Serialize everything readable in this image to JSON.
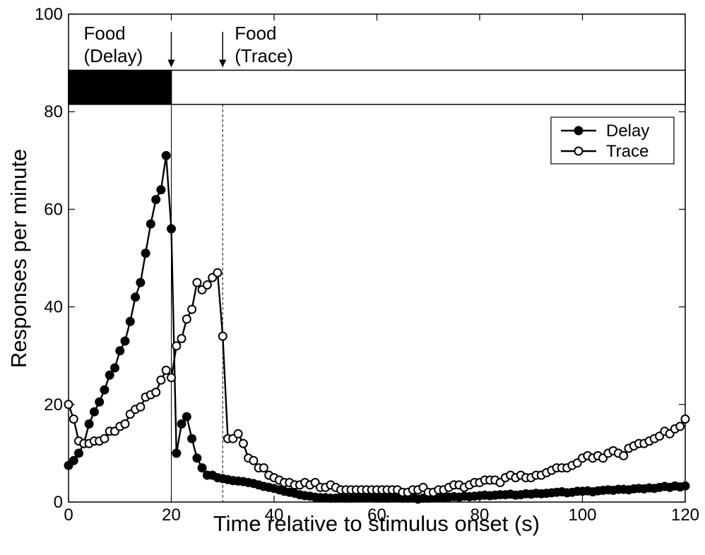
{
  "chart_data": {
    "type": "line",
    "xlabel": "Time relative to stimulus onset (s)",
    "ylabel": "Responses per minute",
    "xlim": [
      0,
      120
    ],
    "ylim": [
      0,
      100
    ],
    "xticks": [
      0,
      20,
      40,
      60,
      80,
      100,
      120
    ],
    "yticks": [
      0,
      20,
      40,
      60,
      80,
      100
    ],
    "grid": false,
    "legend": {
      "position": "top-right",
      "entries": [
        "Delay",
        "Trace"
      ]
    },
    "stimulus_bar": {
      "y_range": [
        81.5,
        88.5
      ],
      "filled_x_range": [
        0,
        20
      ],
      "empty_x_range": [
        20,
        120
      ]
    },
    "event_lines": [
      {
        "x": 20,
        "style": "solid"
      },
      {
        "x": 30,
        "style": "dashed"
      }
    ],
    "annotations": [
      {
        "lines": [
          "Food",
          "(Delay)"
        ],
        "arrow_x": 20
      },
      {
        "lines": [
          "Food",
          "(Trace)"
        ],
        "arrow_x": 30
      }
    ],
    "series": [
      {
        "name": "Delay",
        "marker": "filled",
        "x": [
          0,
          1,
          2,
          3,
          4,
          5,
          6,
          7,
          8,
          9,
          10,
          11,
          12,
          13,
          14,
          15,
          16,
          17,
          18,
          19,
          20,
          21,
          22,
          23,
          24,
          25,
          26,
          27,
          28,
          29,
          30,
          31,
          32,
          33,
          34,
          35,
          36,
          37,
          38,
          39,
          40,
          41,
          42,
          43,
          44,
          45,
          46,
          47,
          48,
          49,
          50,
          51,
          52,
          53,
          54,
          55,
          56,
          57,
          58,
          59,
          60,
          61,
          62,
          63,
          64,
          65,
          66,
          67,
          68,
          69,
          70,
          71,
          72,
          73,
          74,
          75,
          76,
          77,
          78,
          79,
          80,
          81,
          82,
          83,
          84,
          85,
          86,
          87,
          88,
          89,
          90,
          91,
          92,
          93,
          94,
          95,
          96,
          97,
          98,
          99,
          100,
          101,
          102,
          103,
          104,
          105,
          106,
          107,
          108,
          109,
          110,
          111,
          112,
          113,
          114,
          115,
          116,
          117,
          118,
          119,
          120
        ],
        "values": [
          7.5,
          8.5,
          10,
          12,
          16,
          18.5,
          20.5,
          23,
          26,
          27.5,
          31,
          33,
          37,
          42,
          45,
          51,
          57,
          62,
          64,
          71,
          56,
          10,
          16,
          17.5,
          13,
          9,
          7,
          5.5,
          5.5,
          5,
          4.8,
          4.6,
          4.4,
          4.3,
          4.2,
          4,
          3.8,
          3.5,
          3.2,
          3,
          2.8,
          2.5,
          2.2,
          2,
          1.8,
          1.5,
          1.3,
          1.2,
          1,
          0.9,
          0.9,
          0.8,
          0.8,
          0.9,
          0.8,
          0.8,
          0.9,
          0.9,
          1,
          0.9,
          0.8,
          0.9,
          0.8,
          1,
          0.9,
          0.8,
          0.8,
          1,
          0.6,
          0.8,
          0.8,
          0.9,
          1,
          0.9,
          1,
          1.1,
          1,
          1.2,
          1.1,
          1.2,
          1.3,
          1.4,
          1.3,
          1.4,
          1.5,
          1.5,
          1.6,
          1.4,
          1.5,
          1.7,
          1.6,
          1.8,
          1.7,
          1.8,
          1.9,
          2,
          2.1,
          1.9,
          2,
          2.2,
          2.2,
          2.3,
          2.1,
          2.3,
          2.4,
          2.5,
          2.4,
          2.6,
          2.6,
          2.5,
          2.7,
          2.8,
          2.7,
          2.9,
          2.8,
          3,
          3.2,
          3,
          3.3,
          3.1,
          3.3
        ]
      },
      {
        "name": "Trace",
        "marker": "open",
        "x": [
          0,
          1,
          2,
          3,
          4,
          5,
          6,
          7,
          8,
          9,
          10,
          11,
          12,
          13,
          14,
          15,
          16,
          17,
          18,
          19,
          20,
          21,
          22,
          23,
          24,
          25,
          26,
          27,
          28,
          29,
          30,
          31,
          32,
          33,
          34,
          35,
          36,
          37,
          38,
          39,
          40,
          41,
          42,
          43,
          44,
          45,
          46,
          47,
          48,
          49,
          50,
          51,
          52,
          53,
          54,
          55,
          56,
          57,
          58,
          59,
          60,
          61,
          62,
          63,
          64,
          65,
          66,
          67,
          68,
          69,
          70,
          71,
          72,
          73,
          74,
          75,
          76,
          77,
          78,
          79,
          80,
          81,
          82,
          83,
          84,
          85,
          86,
          87,
          88,
          89,
          90,
          91,
          92,
          93,
          94,
          95,
          96,
          97,
          98,
          99,
          100,
          101,
          102,
          103,
          104,
          105,
          106,
          107,
          108,
          109,
          110,
          111,
          112,
          113,
          114,
          115,
          116,
          117,
          118,
          119,
          120
        ],
        "values": [
          20,
          17,
          12.5,
          12,
          12,
          12.5,
          12.5,
          13,
          14.5,
          14.5,
          15.5,
          16,
          18,
          19,
          19.5,
          21.5,
          22,
          22.5,
          25,
          27,
          25.5,
          32,
          33.5,
          37.5,
          39.5,
          45,
          43.5,
          44.5,
          46,
          47,
          34,
          13,
          13,
          14,
          12,
          9,
          8.5,
          7,
          7,
          5.5,
          5,
          4.5,
          4,
          4,
          3.5,
          3.5,
          4,
          3.5,
          4,
          3,
          3,
          3.5,
          3,
          2.5,
          2.5,
          2.5,
          2.5,
          2.5,
          2.5,
          2.5,
          2.5,
          2.5,
          2.5,
          2.5,
          2.5,
          2,
          2,
          2.5,
          2.5,
          3,
          2,
          2,
          2.5,
          2.5,
          3,
          3.5,
          3.5,
          3,
          3.5,
          4,
          4,
          4.5,
          4.5,
          4.5,
          4,
          5,
          5.5,
          5,
          5.5,
          5,
          5,
          5.5,
          5.5,
          6,
          6.5,
          7,
          7,
          7,
          7.5,
          8,
          9,
          9.5,
          9,
          9.5,
          9,
          10,
          10.5,
          10,
          9.5,
          11,
          11.5,
          12,
          12,
          12.5,
          13,
          13.5,
          14.5,
          14,
          15,
          15.5,
          17
        ]
      }
    ]
  }
}
